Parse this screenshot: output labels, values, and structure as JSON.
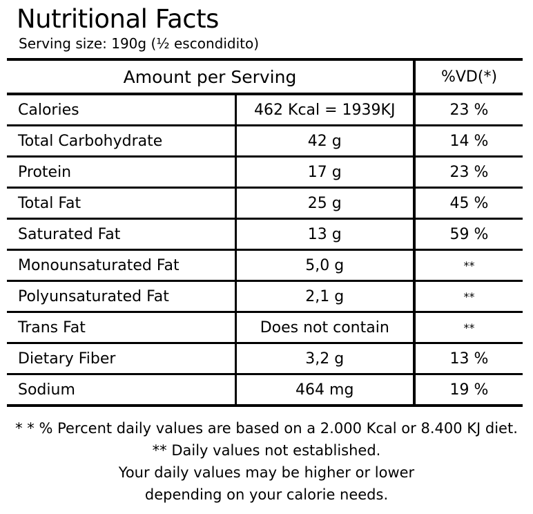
{
  "title": "Nutritional Facts",
  "serving_size": "Serving size: 190g (½ escondidito)",
  "table": {
    "header": {
      "amount": "Amount per Serving",
      "vd": "%VD(*)"
    },
    "rows": [
      {
        "name": "Calories",
        "amount": "462 Kcal = 1939KJ",
        "vd": "23 %"
      },
      {
        "name": "Total Carbohydrate",
        "amount": "42 g",
        "vd": "14 %"
      },
      {
        "name": "Protein",
        "amount": "17 g",
        "vd": "23 %"
      },
      {
        "name": "Total Fat",
        "amount": "25 g",
        "vd": "45 %"
      },
      {
        "name": "Saturated Fat",
        "amount": "13 g",
        "vd": "59 %"
      },
      {
        "name": "Monounsaturated Fat",
        "amount": "5,0 g",
        "vd": "**"
      },
      {
        "name": "Polyunsaturated Fat",
        "amount": "2,1 g",
        "vd": "**"
      },
      {
        "name": "Trans Fat",
        "amount": "Does not contain",
        "vd": "**"
      },
      {
        "name": "Dietary Fiber",
        "amount": "3,2 g",
        "vd": "13 %"
      },
      {
        "name": "Sodium",
        "amount": "464 mg",
        "vd": "19 %"
      }
    ]
  },
  "notes": [
    "* * % Percent daily values are based on a 2.000 Kcal or 8.400 KJ diet.",
    "** Daily values not established.",
    "Your daily values may be higher or lower",
    "depending on your calorie needs."
  ]
}
